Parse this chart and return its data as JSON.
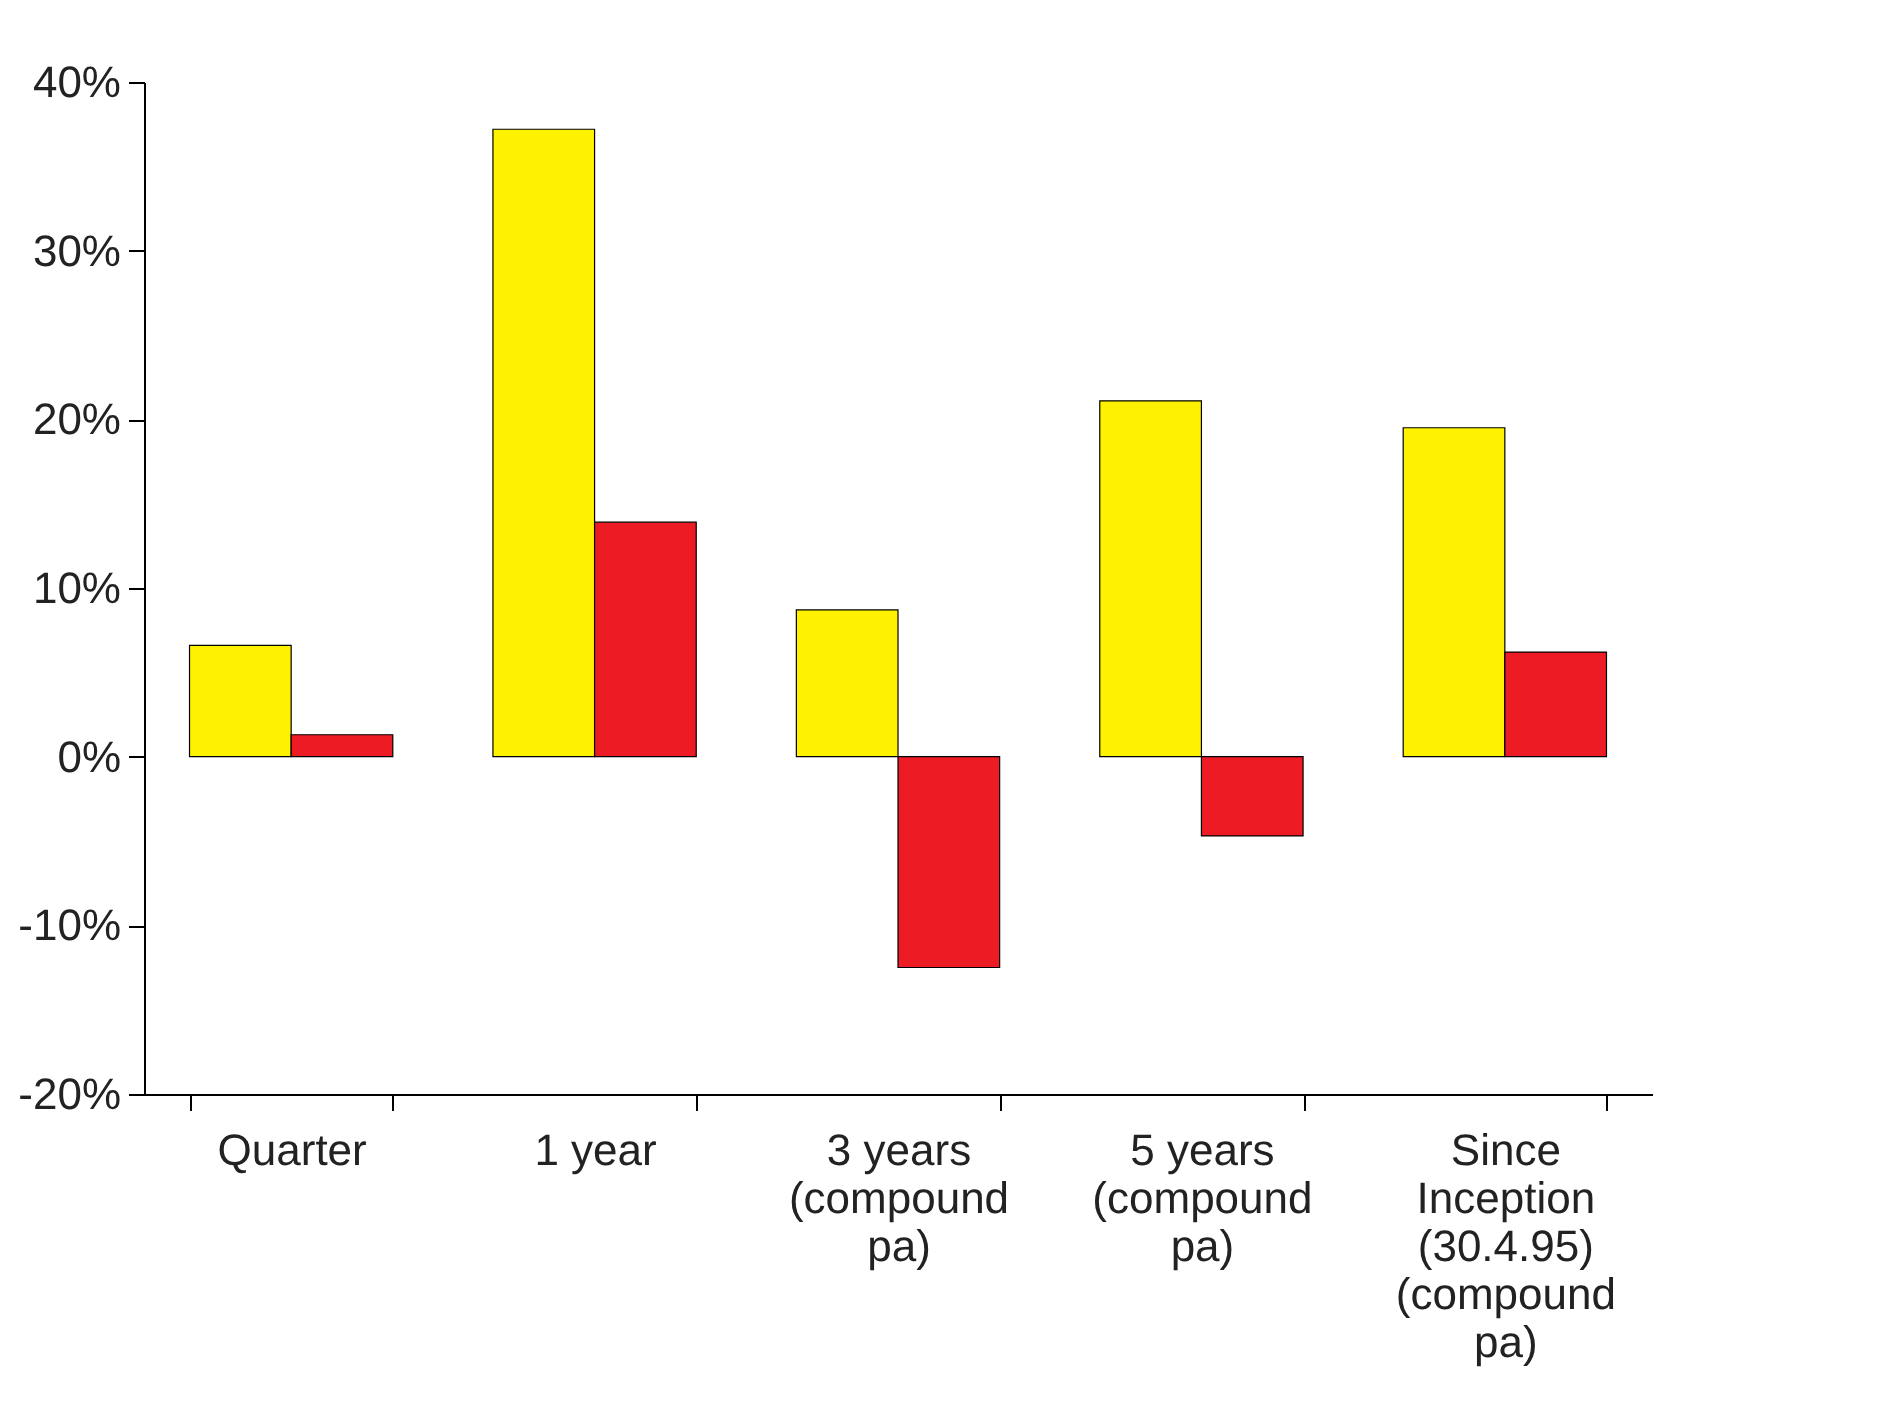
{
  "chart_data": {
    "type": "bar",
    "categories": [
      "Quarter",
      "1 year",
      "3 years (compound pa)",
      "5 years (compound pa)",
      "Since Inception (30.4.95) (compound pa)"
    ],
    "series": [
      {
        "color": "#fff200",
        "values": [
          6.6,
          37.2,
          8.7,
          21.1,
          19.5
        ]
      },
      {
        "color": "#ed1c24",
        "values": [
          1.3,
          13.9,
          -12.5,
          -4.7,
          6.2
        ]
      }
    ],
    "ylim": [
      -20,
      40
    ],
    "yticks": [
      {
        "value": -20,
        "label": "-20%"
      },
      {
        "value": -10,
        "label": "-10%"
      },
      {
        "value": 0,
        "label": "0%"
      },
      {
        "value": 10,
        "label": "10%"
      },
      {
        "value": 20,
        "label": "20%"
      },
      {
        "value": 30,
        "label": "30%"
      },
      {
        "value": 40,
        "label": "40%"
      }
    ],
    "grid": false,
    "legend": false
  }
}
